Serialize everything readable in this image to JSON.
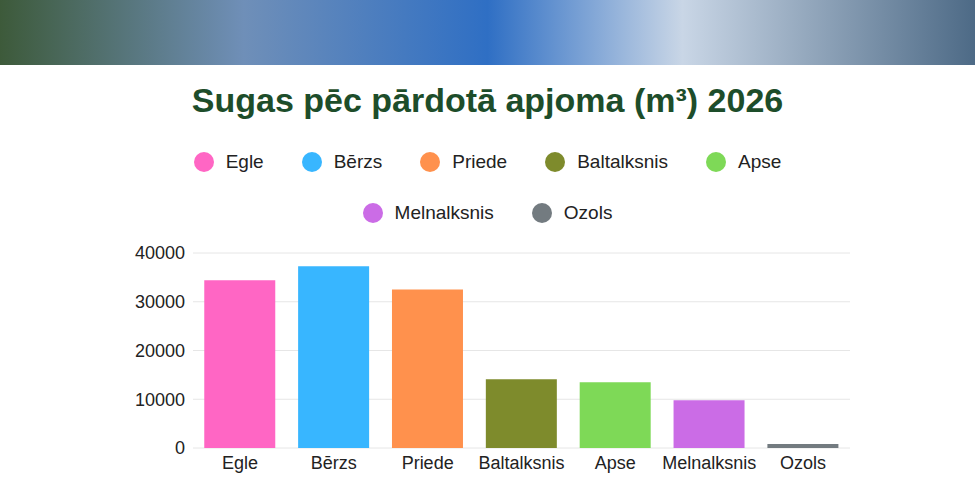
{
  "chart_data": {
    "type": "bar",
    "title": "Sugas pēc pārdotā apjoma (m³) 2026",
    "categories": [
      "Egle",
      "Bērzs",
      "Priede",
      "Baltalksnis",
      "Apse",
      "Melnalksnis",
      "Ozols"
    ],
    "values": [
      34400,
      37300,
      32500,
      14100,
      13500,
      9800,
      800
    ],
    "colors": [
      "#ff66c4",
      "#38b6ff",
      "#ff914d",
      "#7e8b2c",
      "#7ed957",
      "#cb6ce6",
      "#737b80"
    ],
    "ylim": [
      0,
      40000
    ],
    "yticks": [
      0,
      10000,
      20000,
      30000,
      40000
    ],
    "grid": true,
    "legend": "top"
  }
}
